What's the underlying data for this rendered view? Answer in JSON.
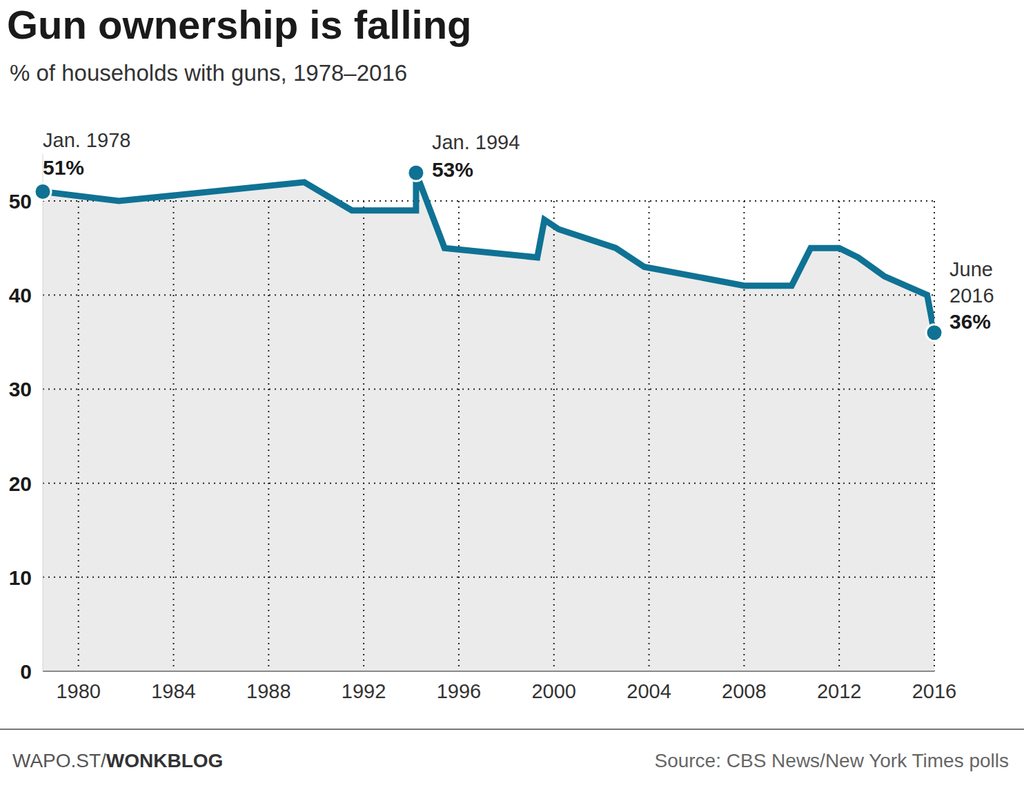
{
  "chart_data": {
    "type": "line",
    "title": "Gun ownership is falling",
    "subtitle": "% of households with guns, 1978–2016",
    "x": [
      1978.5,
      1981.7,
      1989.5,
      1991.5,
      1994.2,
      1994.2,
      1995.4,
      1999.3,
      1999.6,
      2000.2,
      2002.6,
      2003.8,
      2008.0,
      2010.0,
      2010.8,
      2012.0,
      2012.8,
      2013.9,
      2015.7,
      2016.0
    ],
    "series": [
      {
        "name": "% of households with guns",
        "color": "#0f7294",
        "values": [
          51,
          50,
          52,
          49,
          49,
          53,
          45,
          44,
          48,
          47,
          45,
          43,
          41,
          41,
          45,
          45,
          44,
          42,
          40,
          36
        ],
        "value_labels": [
          "51%",
          null,
          null,
          null,
          null,
          "53%",
          null,
          null,
          null,
          null,
          null,
          null,
          null,
          null,
          null,
          null,
          null,
          null,
          null,
          "36%"
        ]
      }
    ],
    "annotations": [
      {
        "x": 1978.5,
        "text": [
          "Jan. 1978"
        ]
      },
      {
        "x": 1994.2,
        "text": [
          "Jan. 1994"
        ]
      },
      {
        "x": 2016.0,
        "text": [
          "June",
          "2016"
        ]
      }
    ],
    "xlim": [
      1978.5,
      2016
    ],
    "xticks": [
      1980,
      1984,
      1988,
      1992,
      1996,
      2000,
      2004,
      2008,
      2012,
      2016
    ],
    "ylim": [
      0,
      55
    ],
    "yticks": [
      0,
      10,
      20,
      30,
      40,
      50
    ],
    "grid": true,
    "data_labels": true,
    "credit": [
      "WAPO.ST/",
      "WONKBLOG"
    ],
    "source": "Source: CBS News/New York Times polls"
  }
}
